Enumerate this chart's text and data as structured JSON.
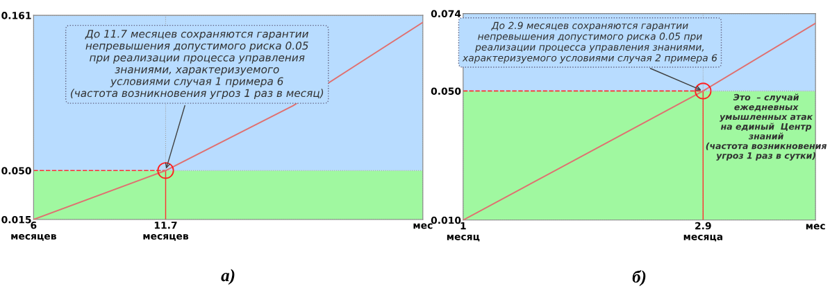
{
  "chart_data": [
    {
      "type": "line",
      "title": "а)",
      "grid": true,
      "xlim": [
        6,
        22.8
      ],
      "xticks": [
        {
          "value": 6,
          "label": "6\nмесяцев"
        },
        {
          "value": 11.7,
          "label": "11.7\nмесяцев"
        },
        {
          "value": 22.8,
          "label": "мес"
        }
      ],
      "ylim": [
        0.015,
        0.161
      ],
      "yticks": [
        {
          "value": 0.015,
          "label": "0.015"
        },
        {
          "value": 0.05,
          "label": "0.050"
        },
        {
          "value": 0.161,
          "label": "0.161"
        }
      ],
      "bands": [
        {
          "axis": "y",
          "from": 0.015,
          "to": 0.05,
          "color": "#a0f8a0"
        },
        {
          "axis": "y",
          "from": 0.05,
          "to": 0.161,
          "color": "#b8dcff"
        }
      ],
      "ref_lines": [
        {
          "axis": "y",
          "value": 0.05,
          "color": "#ff3030",
          "line_style": "dashed"
        },
        {
          "axis": "x",
          "value": 11.7,
          "color": "#ff3030",
          "line_style": "solid"
        }
      ],
      "series": [
        {
          "type": "line",
          "color": "#e07070",
          "x": [
            6,
            11.7,
            17.2,
            22.8
          ],
          "values": [
            0.015,
            0.05,
            0.0964,
            0.156
          ],
          "marker": "none",
          "line_style": "solid"
        },
        {
          "type": "scatter",
          "color": "#ff2020",
          "x": [
            11.7
          ],
          "values": [
            0.05
          ],
          "marker": "circle"
        }
      ],
      "annotations": [
        {
          "text": "До 11.7 месяцев сохраняются гарантии\nнепревышения допустимого риска 0.05\nпри реализации процесса управления\nзнаниями, характеризуемого\nусловиями случая 1 примера 6\n(частота возникновения угроз 1 раз в месяц)",
          "x": 11.7,
          "y": 0.05
        }
      ]
    },
    {
      "type": "line",
      "title": "б)",
      "grid": true,
      "xlim": [
        1,
        3.79
      ],
      "xticks": [
        {
          "value": 1,
          "label": "1\nмесяц"
        },
        {
          "value": 2.9,
          "label": "2.9\nмесяца"
        },
        {
          "value": 3.79,
          "label": "мес"
        }
      ],
      "ylim": [
        0.01,
        0.074
      ],
      "yticks": [
        {
          "value": 0.01,
          "label": "0.010"
        },
        {
          "value": 0.05,
          "label": "0.050"
        },
        {
          "value": 0.074,
          "label": "0.074"
        }
      ],
      "bands": [
        {
          "axis": "y",
          "from": 0.01,
          "to": 0.05,
          "color": "#a0f8a0"
        },
        {
          "axis": "y",
          "from": 0.05,
          "to": 0.074,
          "color": "#b8dcff"
        }
      ],
      "ref_lines": [
        {
          "axis": "y",
          "value": 0.05,
          "color": "#ff3030",
          "line_style": "dashed"
        },
        {
          "axis": "x",
          "value": 2.9,
          "color": "#ff3030",
          "line_style": "solid"
        }
      ],
      "series": [
        {
          "type": "line",
          "color": "#e07070",
          "x": [
            1,
            2.9,
            3.79
          ],
          "values": [
            0.01,
            0.05,
            0.071
          ],
          "marker": "none",
          "line_style": "solid"
        },
        {
          "type": "scatter",
          "color": "#ff2020",
          "x": [
            2.9
          ],
          "values": [
            0.05
          ],
          "marker": "circle"
        }
      ],
      "annotations": [
        {
          "text": "До 2.9 месяцев сохраняются гарантии\nнепревышения допустимого риска 0.05 при\nреализации процесса управления знаниями,\nхарактеризуемого условиями случая 2 примера 6",
          "x": 2.9,
          "y": 0.05
        },
        "Это  – случай\nежедневных\nумышленных атак\nна единый  Центр\nзнаний\n(частота возникновения\nугроз 1 раз в сутки)"
      ]
    }
  ]
}
